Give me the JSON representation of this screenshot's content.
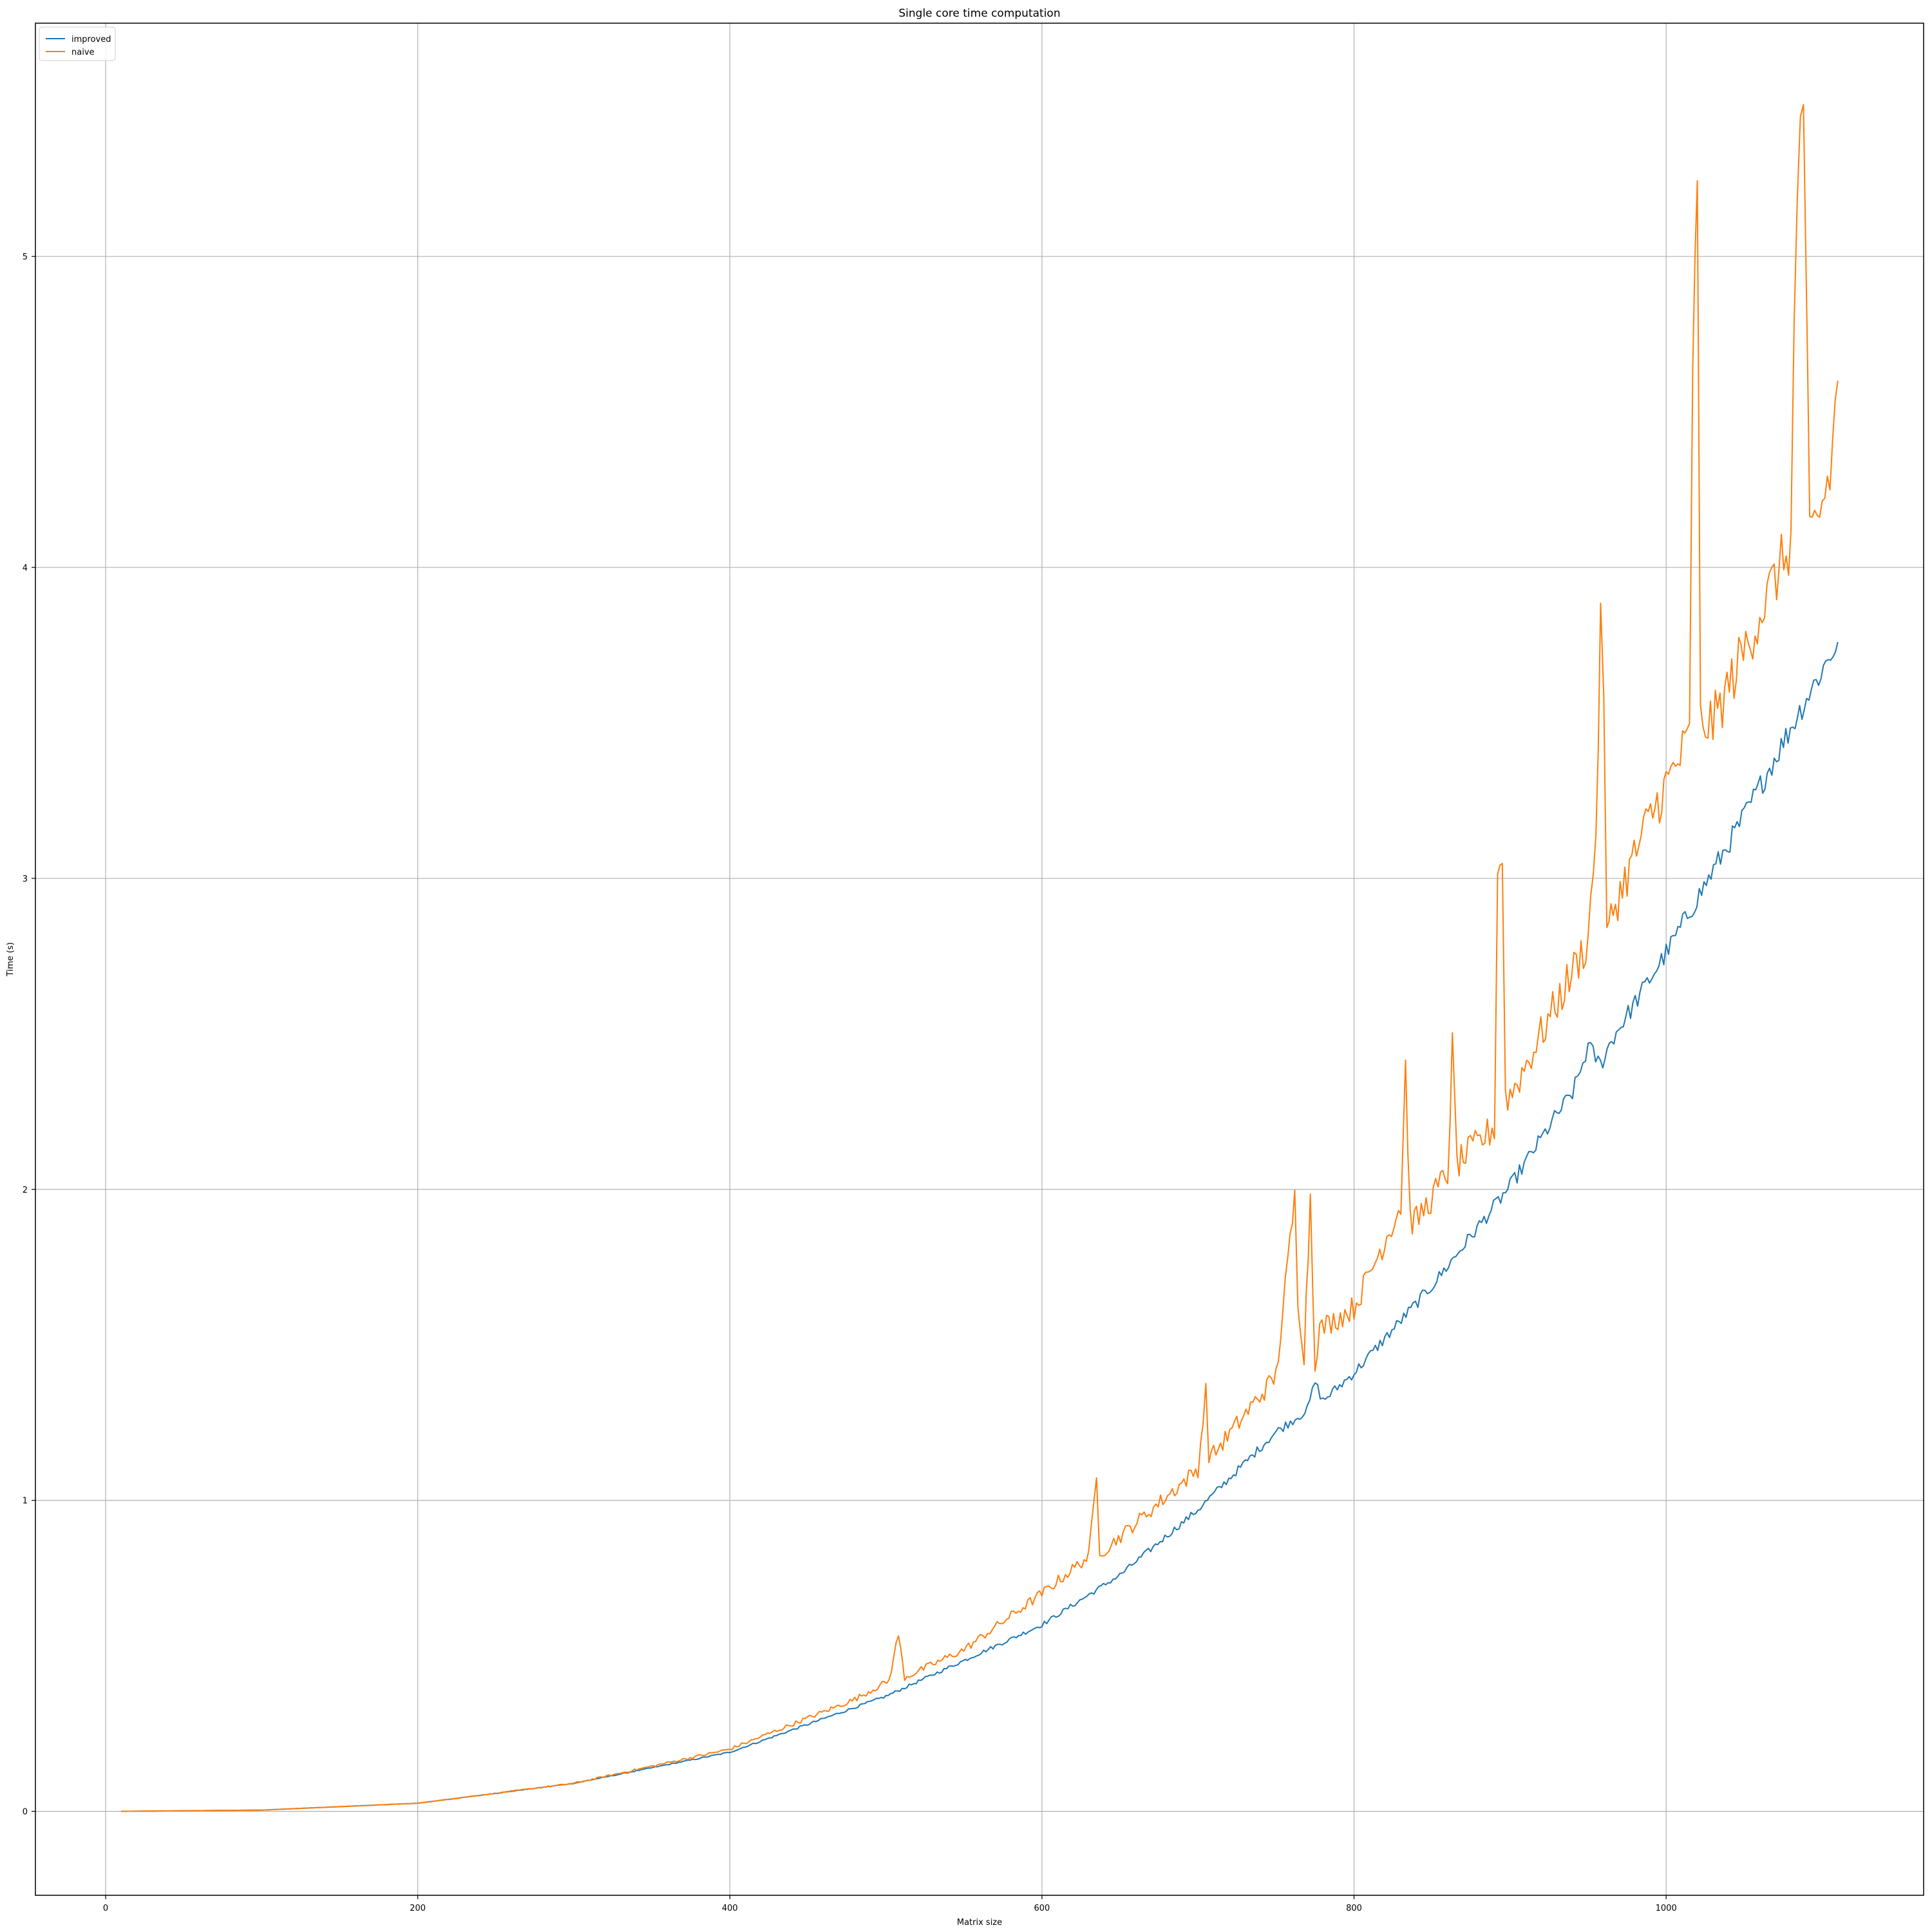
{
  "chart_data": {
    "type": "line",
    "title": "Single core time computation",
    "xlabel": "Matrix size",
    "ylabel": "Time (s)",
    "xlim": [
      -45,
      1165
    ],
    "ylim": [
      -0.27,
      5.75
    ],
    "x_ticks": [
      0,
      200,
      400,
      600,
      800,
      1000
    ],
    "y_ticks": [
      0,
      1,
      2,
      3,
      4,
      5
    ],
    "grid": true,
    "legend_position": "top-left",
    "colors": {
      "improved": "#1f77b4",
      "naive": "#ff7f0e"
    },
    "series": [
      {
        "name": "improved",
        "x": [
          10,
          100,
          200,
          300,
          400,
          500,
          600,
          650,
          700,
          750,
          770,
          775,
          780,
          800,
          850,
          900,
          930,
          940,
          945,
          950,
          958,
          965,
          1000,
          1050,
          1090,
          1110
        ],
        "y": [
          0.0,
          0.004,
          0.026,
          0.09,
          0.19,
          0.37,
          0.6,
          0.76,
          0.97,
          1.22,
          1.29,
          1.38,
          1.32,
          1.41,
          1.69,
          2.01,
          2.24,
          2.31,
          2.38,
          2.46,
          2.4,
          2.48,
          2.76,
          3.2,
          3.58,
          3.76
        ]
      },
      {
        "name": "naive",
        "x": [
          10,
          100,
          200,
          300,
          400,
          480,
          502,
          508,
          512,
          550,
          600,
          630,
          635,
          637,
          640,
          700,
          705,
          707,
          710,
          750,
          762,
          764,
          768,
          772,
          775,
          778,
          800,
          830,
          833,
          836,
          840,
          860,
          863,
          866,
          870,
          890,
          892,
          895,
          897,
          900,
          950,
          955,
          958,
          960,
          962,
          966,
          990,
          1000,
          1015,
          1017,
          1020,
          1022,
          1030,
          1060,
          1080,
          1082,
          1084,
          1086,
          1088,
          1092,
          1100,
          1105,
          1110
        ],
        "y": [
          0.0,
          0.004,
          0.026,
          0.09,
          0.2,
          0.36,
          0.42,
          0.57,
          0.43,
          0.52,
          0.7,
          0.82,
          1.07,
          0.84,
          0.84,
          1.1,
          1.35,
          1.15,
          1.15,
          1.4,
          1.97,
          1.65,
          1.47,
          1.98,
          1.45,
          1.55,
          1.62,
          1.95,
          2.4,
          1.9,
          1.9,
          2.05,
          2.45,
          2.08,
          2.1,
          2.2,
          3.02,
          3.08,
          2.3,
          2.3,
          2.8,
          3.15,
          3.79,
          3.65,
          2.8,
          2.9,
          3.2,
          3.3,
          3.45,
          4.68,
          5.18,
          3.5,
          3.5,
          3.85,
          4.08,
          4.75,
          5.15,
          5.49,
          5.4,
          4.1,
          4.2,
          4.3,
          4.6
        ]
      }
    ]
  }
}
